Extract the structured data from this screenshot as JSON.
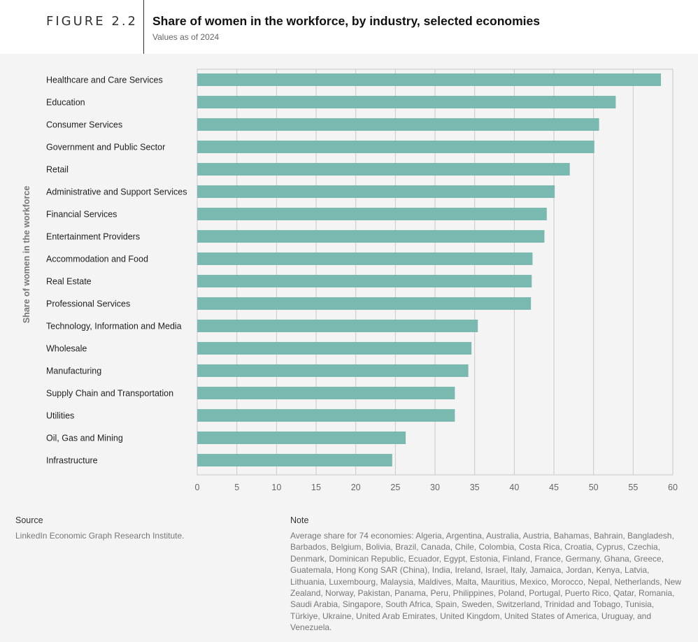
{
  "header": {
    "figure_label": "FIGURE 2.2",
    "title": "Share of women in the workforce, by industry, selected economies",
    "subtitle": "Values as of 2024"
  },
  "colors": {
    "bar": "#79b9b0",
    "grid": "#c9c9c9",
    "panel": "#f4f4f4"
  },
  "chart_data": {
    "type": "bar",
    "orientation": "horizontal",
    "title": "Share of women in the workforce, by industry, selected economies",
    "ylabel": "Share of women in the workforce",
    "xlabel": "",
    "xlim": [
      0,
      60
    ],
    "xticks": [
      0,
      5,
      10,
      15,
      20,
      25,
      30,
      35,
      40,
      45,
      50,
      55,
      60
    ],
    "grid": true,
    "categories": [
      "Healthcare and Care Services",
      "Education",
      "Consumer Services",
      "Government and Public Sector",
      "Retail",
      "Administrative and Support Services",
      "Financial Services",
      "Entertainment Providers",
      "Accommodation and Food",
      "Real Estate",
      "Professional Services",
      "Technology, Information and Media",
      "Wholesale",
      "Manufacturing",
      "Supply Chain and Transportation",
      "Utilities",
      "Oil, Gas and Mining",
      "Infrastructure"
    ],
    "values": [
      58.5,
      52.8,
      50.7,
      50.1,
      47.0,
      45.1,
      44.1,
      43.8,
      42.3,
      42.2,
      42.1,
      35.4,
      34.6,
      34.2,
      32.5,
      32.5,
      26.3,
      24.6
    ]
  },
  "footer": {
    "source_heading": "Source",
    "source_text": "LinkedIn Economic Graph Research Institute.",
    "note_heading": "Note",
    "note_text": "Average share for 74 economies: Algeria, Argentina, Australia, Austria, Bahamas, Bahrain, Bangladesh, Barbados, Belgium, Bolivia, Brazil, Canada, Chile, Colombia, Costa Rica, Croatia, Cyprus, Czechia, Denmark, Dominican Republic, Ecuador, Egypt, Estonia, Finland, France, Germany, Ghana, Greece, Guatemala, Hong Kong SAR (China), India, Ireland, Israel, Italy, Jamaica, Jordan, Kenya, Latvia, Lithuania, Luxembourg, Malaysia, Maldives, Malta, Mauritius, Mexico, Morocco, Nepal, Netherlands, New Zealand, Norway, Pakistan, Panama, Peru, Philippines, Poland, Portugal, Puerto Rico, Qatar, Romania, Saudi Arabia, Singapore, South Africa, Spain, Sweden, Switzerland, Trinidad and Tobago, Tunisia, Türkiye, Ukraine, United Arab Emirates, United Kingdom, United States of America, Uruguay, and Venezuela."
  }
}
